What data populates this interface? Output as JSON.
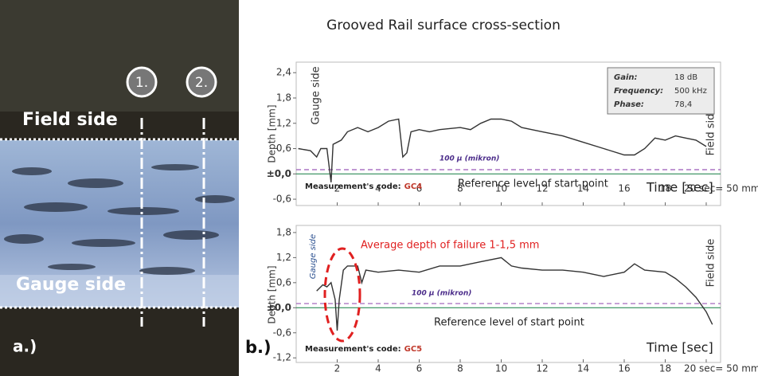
{
  "title": "Grooved Rail surface cross-section",
  "photo": {
    "markers": [
      "1.",
      "2."
    ],
    "field_label": "Field side",
    "gauge_label": "Gauge side",
    "panel": "a.)"
  },
  "panel_b": "b.)",
  "chart_data": [
    {
      "type": "line",
      "color": "#333333",
      "y_label": "Depth [mm]",
      "x_label": "Time [sec]",
      "left_note": "Gauge side",
      "right_note": "Field side",
      "code_label": "Measurement's code:",
      "code": "GC4",
      "reference_lines": [
        {
          "value": 0.1,
          "label": "100 µ (mikron)",
          "color": "#9b59b6"
        },
        {
          "value": 0,
          "label": "Reference level of start point",
          "color": "#2e8b57"
        }
      ],
      "info": [
        [
          "Gain:",
          "18 dB"
        ],
        [
          "Frequency:",
          "500 kHz"
        ],
        [
          "Phase:",
          "78,4"
        ]
      ],
      "xlim": [
        0,
        20.7
      ],
      "ylim": [
        -0.75,
        2.65
      ],
      "xticks": [
        2,
        4,
        6,
        8,
        10,
        12,
        14,
        16,
        18,
        {
          "value": 20,
          "label": "20 sec= 50 mm"
        }
      ],
      "yticks": [
        {
          "value": -0.6,
          "label": "-0,6"
        },
        {
          "value": 0,
          "label": "±0,0"
        },
        {
          "value": 0.6,
          "label": "0,6"
        },
        {
          "value": 1.2,
          "label": "1,2"
        },
        {
          "value": 1.8,
          "label": "1,8"
        },
        {
          "value": 2.4,
          "label": "2,4"
        }
      ],
      "x": [
        0.1,
        0.7,
        1.0,
        1.2,
        1.5,
        1.7,
        1.8,
        2.2,
        2.5,
        3,
        3.5,
        4,
        4.5,
        5,
        5.2,
        5.4,
        5.6,
        6,
        6.5,
        7,
        8,
        8.5,
        9,
        9.5,
        10,
        10.5,
        11,
        12,
        13,
        14,
        15,
        16,
        16.5,
        17,
        17.5,
        18,
        18.5,
        19,
        19.5,
        20
      ],
      "values": [
        0.6,
        0.55,
        0.4,
        0.6,
        0.6,
        -0.2,
        0.7,
        0.8,
        1.0,
        1.1,
        1.0,
        1.1,
        1.25,
        1.3,
        0.4,
        0.5,
        1.0,
        1.05,
        1.0,
        1.05,
        1.1,
        1.05,
        1.2,
        1.3,
        1.3,
        1.25,
        1.1,
        1.0,
        0.9,
        0.75,
        0.6,
        0.45,
        0.45,
        0.6,
        0.85,
        0.8,
        0.9,
        0.85,
        0.8,
        0.65
      ]
    },
    {
      "type": "line",
      "color": "#333333",
      "y_label": "Depth [mm]",
      "x_label": "Time [sec]",
      "left_note": "Gauge side",
      "right_note": "Field side",
      "code_label": "Measurement's code:",
      "code": "GC5",
      "annotation": "Average depth of failure 1-1,5 mm",
      "reference_lines": [
        {
          "value": 0.1,
          "label": "100 µ (mikron)",
          "color": "#9b59b6"
        },
        {
          "value": 0,
          "label": "Reference level of start point",
          "color": "#2e8b57"
        }
      ],
      "xlim": [
        0,
        20.7
      ],
      "ylim": [
        -1.31,
        1.97
      ],
      "xticks": [
        2,
        4,
        6,
        8,
        10,
        12,
        14,
        16,
        18,
        {
          "value": 20,
          "label": "20 sec= 50 mm"
        }
      ],
      "yticks": [
        {
          "value": -1.2,
          "label": "-1,2"
        },
        {
          "value": -0.6,
          "label": "-0,6"
        },
        {
          "value": 0,
          "label": "±0,0"
        },
        {
          "value": 0.6,
          "label": "0,6"
        },
        {
          "value": 1.2,
          "label": "1,2"
        },
        {
          "value": 1.8,
          "label": "1,8"
        }
      ],
      "x": [
        1.0,
        1.3,
        1.5,
        1.7,
        1.9,
        2.0,
        2.1,
        2.3,
        2.5,
        3,
        3.2,
        3.4,
        4,
        5,
        6,
        7,
        8,
        9,
        10,
        10.5,
        11,
        12,
        13,
        14,
        15,
        16,
        16.5,
        17,
        18,
        18.5,
        19,
        19.5,
        20,
        20.3
      ],
      "values": [
        0.4,
        0.55,
        0.5,
        0.6,
        0.2,
        -0.55,
        0.2,
        0.9,
        1.0,
        1.0,
        0.6,
        0.9,
        0.85,
        0.9,
        0.85,
        1.0,
        1.0,
        1.1,
        1.2,
        1.0,
        0.95,
        0.9,
        0.9,
        0.85,
        0.75,
        0.85,
        1.05,
        0.9,
        0.85,
        0.7,
        0.5,
        0.25,
        -0.1,
        -0.4
      ]
    }
  ]
}
